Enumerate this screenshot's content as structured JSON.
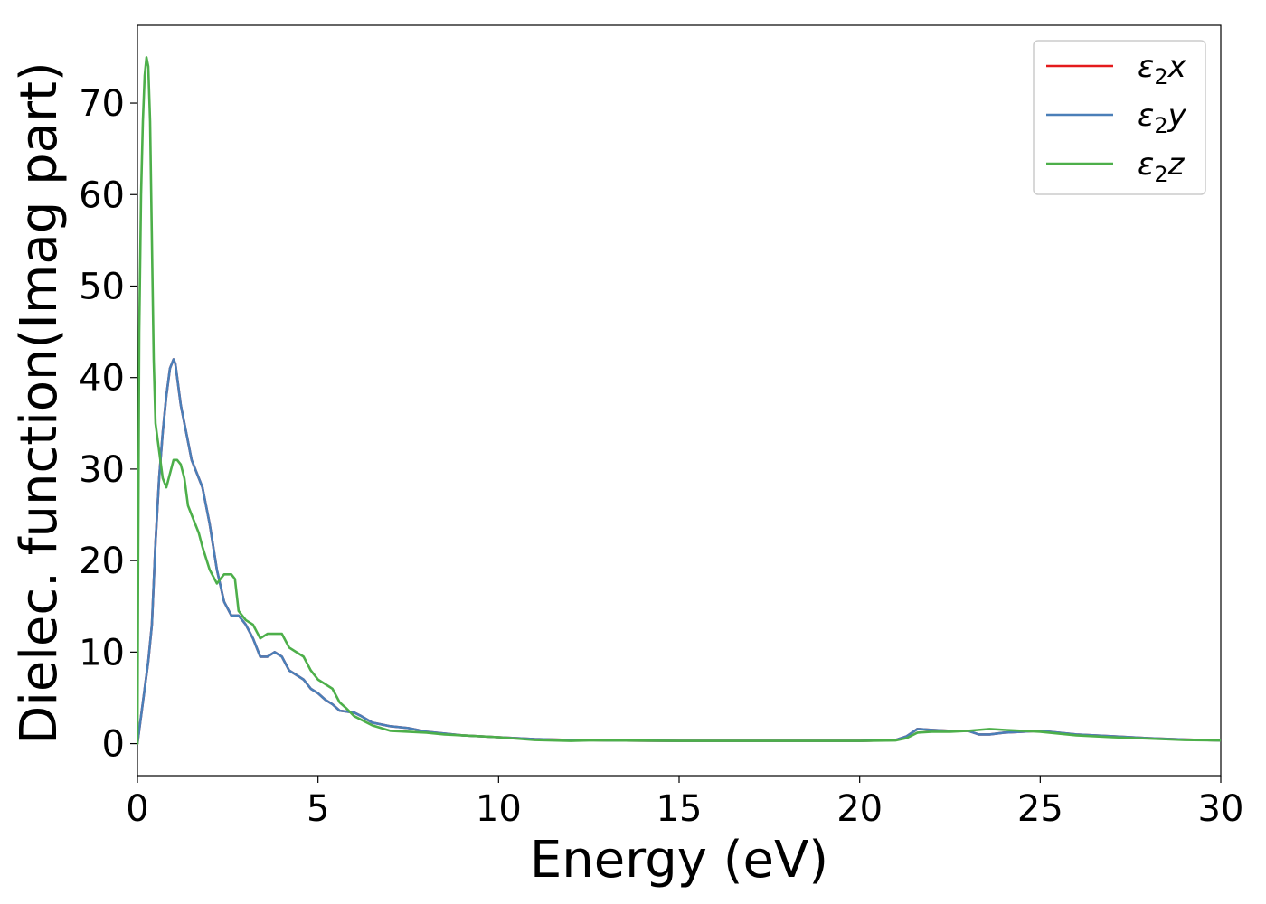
{
  "chart_data": {
    "type": "line",
    "xlabel": "Energy (eV)",
    "ylabel": "Dielec. function(Imag part)",
    "xlim": [
      0,
      30
    ],
    "ylim": [
      -3.5,
      78.5
    ],
    "x_ticks": [
      0,
      5,
      10,
      15,
      20,
      25,
      30
    ],
    "y_ticks": [
      0,
      10,
      20,
      30,
      40,
      50,
      60,
      70
    ],
    "legend_position": "top-right",
    "grid": false,
    "series": [
      {
        "name": "ε2x",
        "legend_base": "ε",
        "legend_sub": "2",
        "legend_suffix": "x",
        "color": "#e41a1c",
        "x": [
          0,
          0.1,
          0.2,
          0.3,
          0.4,
          0.5,
          0.6,
          0.7,
          0.8,
          0.9,
          1.0,
          1.05,
          1.1,
          1.2,
          1.3,
          1.4,
          1.5,
          1.6,
          1.8,
          2.0,
          2.2,
          2.4,
          2.6,
          2.8,
          3.0,
          3.2,
          3.4,
          3.6,
          3.8,
          4.0,
          4.2,
          4.4,
          4.6,
          4.8,
          5.0,
          5.2,
          5.4,
          5.6,
          5.8,
          6.0,
          6.2,
          6.5,
          7.0,
          7.5,
          8.0,
          8.5,
          9.0,
          10.0,
          11.0,
          12.0,
          12.5,
          13.0,
          15.0,
          17.0,
          19.0,
          20.0,
          21.0,
          21.3,
          21.6,
          22.0,
          22.5,
          23.0,
          23.3,
          23.6,
          24.0,
          24.5,
          25.0,
          25.5,
          26.0,
          27.0,
          28.0,
          29.0,
          30.0
        ],
        "y": [
          0,
          3,
          6,
          9,
          13,
          22,
          29,
          34,
          38,
          41,
          42,
          41.5,
          40,
          37,
          35,
          33,
          31,
          30,
          28,
          24,
          19,
          15.5,
          14,
          14,
          13,
          11.5,
          9.5,
          9.5,
          10,
          9.5,
          8,
          7.5,
          7,
          6,
          5.5,
          4.8,
          4.3,
          3.6,
          3.5,
          3.4,
          3.0,
          2.3,
          1.9,
          1.7,
          1.3,
          1.1,
          0.9,
          0.7,
          0.5,
          0.4,
          0.4,
          0.35,
          0.3,
          0.3,
          0.3,
          0.3,
          0.4,
          0.8,
          1.6,
          1.5,
          1.4,
          1.4,
          1.0,
          1.0,
          1.2,
          1.3,
          1.4,
          1.2,
          1.0,
          0.8,
          0.6,
          0.45,
          0.35
        ]
      },
      {
        "name": "ε2y",
        "legend_base": "ε",
        "legend_sub": "2",
        "legend_suffix": "y",
        "color": "#4a7fb8",
        "x": [
          0,
          0.1,
          0.2,
          0.3,
          0.4,
          0.5,
          0.6,
          0.7,
          0.8,
          0.9,
          1.0,
          1.05,
          1.1,
          1.2,
          1.3,
          1.4,
          1.5,
          1.6,
          1.8,
          2.0,
          2.2,
          2.4,
          2.6,
          2.8,
          3.0,
          3.2,
          3.4,
          3.6,
          3.8,
          4.0,
          4.2,
          4.4,
          4.6,
          4.8,
          5.0,
          5.2,
          5.4,
          5.6,
          5.8,
          6.0,
          6.2,
          6.5,
          7.0,
          7.5,
          8.0,
          8.5,
          9.0,
          10.0,
          11.0,
          12.0,
          12.5,
          13.0,
          15.0,
          17.0,
          19.0,
          20.0,
          21.0,
          21.3,
          21.6,
          22.0,
          22.5,
          23.0,
          23.3,
          23.6,
          24.0,
          24.5,
          25.0,
          25.5,
          26.0,
          27.0,
          28.0,
          29.0,
          30.0
        ],
        "y": [
          0,
          3,
          6,
          9,
          13,
          22,
          29,
          34,
          38,
          41,
          42,
          41.5,
          40,
          37,
          35,
          33,
          31,
          30,
          28,
          24,
          19,
          15.5,
          14,
          14,
          13,
          11.5,
          9.5,
          9.5,
          10,
          9.5,
          8,
          7.5,
          7,
          6,
          5.5,
          4.8,
          4.3,
          3.6,
          3.5,
          3.4,
          3.0,
          2.3,
          1.9,
          1.7,
          1.3,
          1.1,
          0.9,
          0.7,
          0.5,
          0.4,
          0.4,
          0.35,
          0.3,
          0.3,
          0.3,
          0.3,
          0.4,
          0.8,
          1.6,
          1.5,
          1.4,
          1.4,
          1.0,
          1.0,
          1.2,
          1.3,
          1.4,
          1.2,
          1.0,
          0.8,
          0.6,
          0.45,
          0.35
        ]
      },
      {
        "name": "ε2z",
        "legend_base": "ε",
        "legend_sub": "2",
        "legend_suffix": "z",
        "color": "#4daf4a",
        "x": [
          0,
          0.02,
          0.05,
          0.1,
          0.15,
          0.2,
          0.25,
          0.3,
          0.35,
          0.4,
          0.45,
          0.5,
          0.55,
          0.6,
          0.7,
          0.8,
          0.9,
          1.0,
          1.1,
          1.2,
          1.3,
          1.4,
          1.5,
          1.6,
          1.7,
          1.8,
          2.0,
          2.2,
          2.4,
          2.6,
          2.7,
          2.8,
          3.0,
          3.2,
          3.4,
          3.6,
          3.8,
          4.0,
          4.2,
          4.4,
          4.6,
          4.8,
          5.0,
          5.2,
          5.4,
          5.6,
          5.8,
          6.0,
          6.5,
          7.0,
          7.5,
          8.0,
          8.5,
          9.0,
          10.0,
          11.0,
          12.0,
          12.5,
          13.0,
          15.0,
          17.0,
          19.0,
          20.0,
          21.0,
          21.3,
          21.6,
          22.0,
          22.5,
          23.0,
          23.3,
          23.6,
          24.0,
          24.5,
          25.0,
          25.5,
          26.0,
          27.0,
          28.0,
          29.0,
          30.0
        ],
        "y": [
          0,
          20,
          45,
          60,
          68,
          73,
          75,
          74,
          68,
          55,
          42,
          35,
          33.5,
          32,
          29,
          28,
          29.5,
          31,
          31,
          30.5,
          29,
          26,
          25,
          24,
          23,
          21.5,
          19,
          17.5,
          18.5,
          18.5,
          18,
          14.5,
          13.5,
          13,
          11.5,
          12,
          12,
          12,
          10.5,
          10,
          9.5,
          8,
          7,
          6.5,
          6,
          4.5,
          3.8,
          3.0,
          2.0,
          1.4,
          1.3,
          1.2,
          1.0,
          0.9,
          0.7,
          0.4,
          0.3,
          0.35,
          0.35,
          0.3,
          0.3,
          0.3,
          0.3,
          0.35,
          0.6,
          1.2,
          1.3,
          1.3,
          1.4,
          1.5,
          1.6,
          1.5,
          1.4,
          1.3,
          1.1,
          0.9,
          0.7,
          0.55,
          0.4,
          0.35
        ]
      }
    ]
  }
}
